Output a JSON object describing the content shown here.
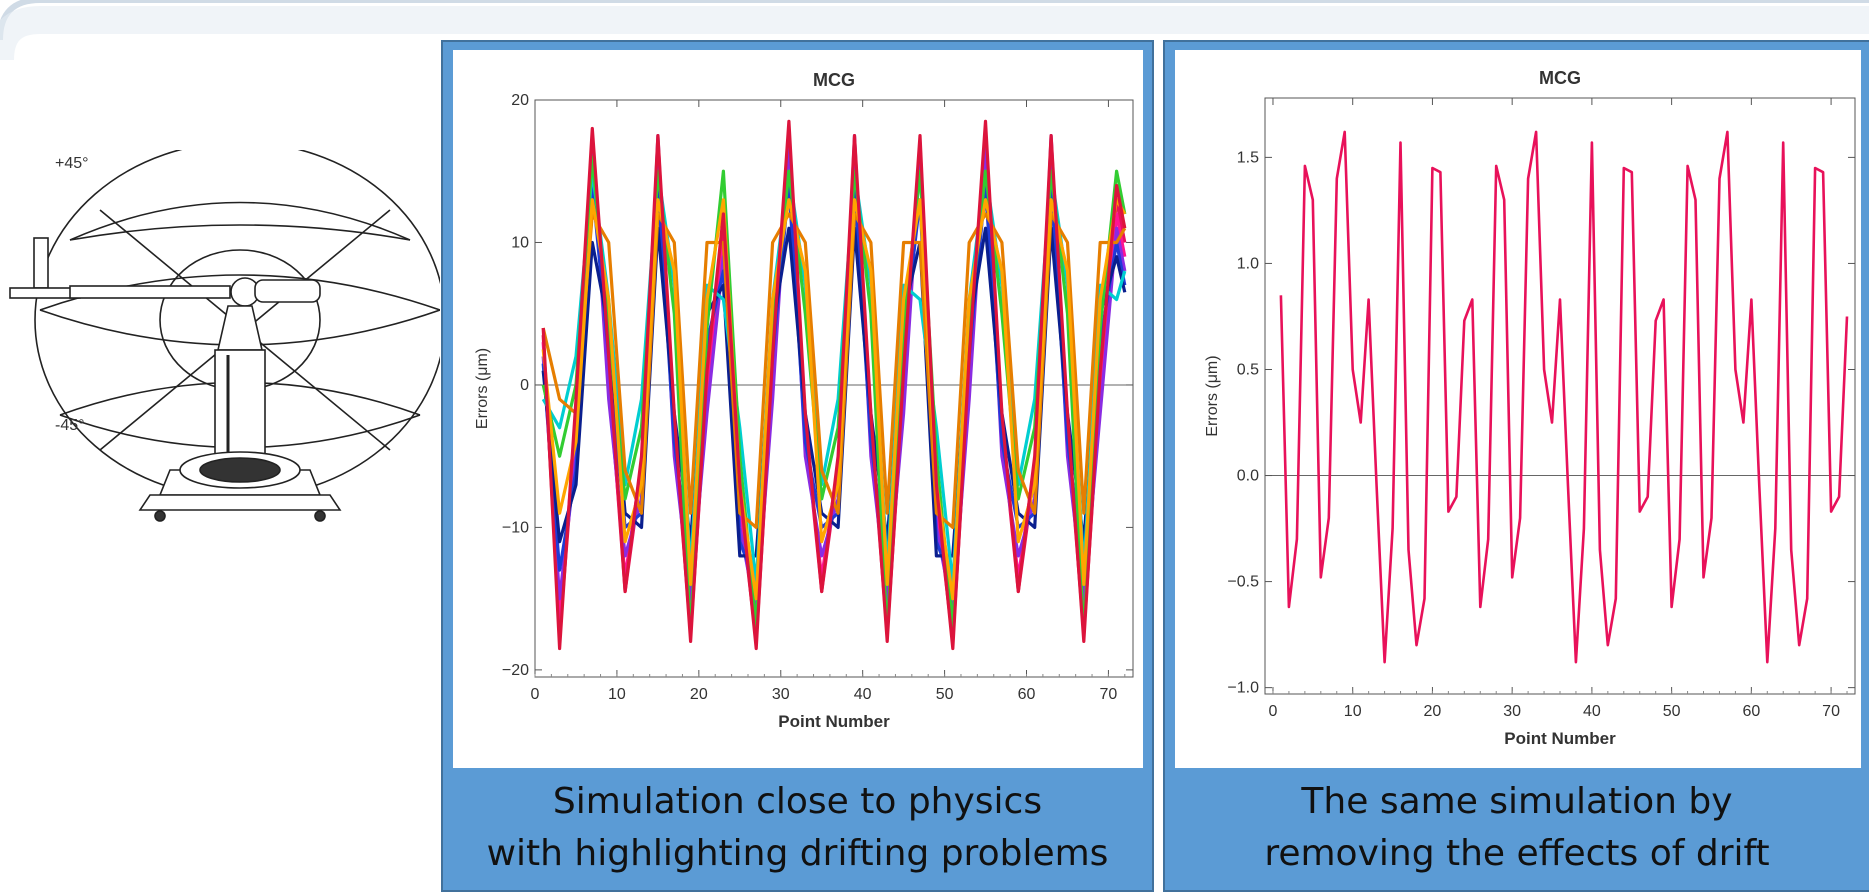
{
  "illustration": {
    "upper_angle": "+45°",
    "lower_angle": "-45°"
  },
  "chart_data": [
    {
      "type": "line",
      "title": "MCG",
      "xlabel": "Point Number",
      "ylabel": "Errors (μm)",
      "xlim": [
        0,
        73
      ],
      "ylim": [
        -20.5,
        20
      ],
      "xticks": [
        0,
        10,
        20,
        30,
        40,
        50,
        60,
        70
      ],
      "yticks": [
        -20,
        -10,
        0,
        10,
        20
      ],
      "ytick_labels": [
        "−20",
        "−10",
        "0",
        "10",
        "20"
      ],
      "grid": false,
      "x": [
        1,
        3,
        5,
        7,
        9,
        11,
        13,
        15,
        17,
        19,
        21,
        23,
        25,
        27,
        29,
        31,
        33,
        35,
        37,
        39,
        41,
        43,
        45,
        47,
        49,
        51,
        53,
        55,
        57,
        59,
        61,
        63,
        65,
        67,
        69,
        71,
        72
      ],
      "series": [
        {
          "color": "#e8115a",
          "values": [
            3.5,
            -17.5,
            -3,
            17.5,
            1,
            -14.5,
            -6,
            17,
            -3,
            -17.5,
            0,
            11,
            -8,
            -18,
            1,
            18,
            -3,
            -14.5,
            -6,
            17,
            -3,
            -17.5,
            0,
            17,
            -8,
            -18,
            1,
            18,
            -3,
            -14.5,
            -6,
            17,
            -3,
            -17.5,
            0,
            13,
            10
          ]
        },
        {
          "color": "#ff1493",
          "values": [
            3,
            -16.5,
            -2.5,
            16.5,
            0,
            -13.5,
            -5.5,
            16.5,
            -3.5,
            -16.5,
            -0.5,
            10,
            -8.5,
            -17,
            0.5,
            17,
            -3.5,
            -13.5,
            -5.5,
            16.5,
            -3.5,
            -16.5,
            -0.5,
            16,
            -8.5,
            -17,
            0.5,
            17,
            -3.5,
            -13.5,
            -5.5,
            16.5,
            -3.5,
            -16.5,
            -0.5,
            12,
            9
          ]
        },
        {
          "color": "#8a2be2",
          "values": [
            2,
            -15,
            -5,
            17,
            -1,
            -12,
            -8,
            17.5,
            -5,
            -15,
            -2,
            9,
            -10,
            -16,
            -1,
            17,
            -5,
            -12,
            -8,
            17.5,
            -5,
            -15,
            -2,
            16,
            -10,
            -16,
            -1,
            17,
            -5,
            -12,
            -8,
            17.5,
            -5,
            -15,
            -2,
            11,
            8
          ]
        },
        {
          "color": "#1f3bd6",
          "values": [
            1.5,
            -13,
            -6,
            14,
            2,
            -10,
            -9,
            14,
            -4,
            -13,
            3,
            8,
            -11,
            -14,
            2,
            14,
            -4,
            -10,
            -9,
            14,
            -4,
            -13,
            3,
            13,
            -11,
            -14,
            2,
            14,
            -4,
            -10,
            -9,
            14,
            -4,
            -13,
            3,
            10,
            7
          ]
        },
        {
          "color": "#0a1f8f",
          "values": [
            1,
            -11,
            -7,
            10,
            4,
            -9,
            -10,
            11,
            -2,
            -11,
            5,
            7,
            -12,
            -12,
            4,
            11,
            -2,
            -9,
            -10,
            11,
            -2,
            -11,
            5,
            10,
            -12,
            -12,
            4,
            11,
            -2,
            -9,
            -10,
            11,
            -2,
            -11,
            5,
            9,
            6.5
          ]
        },
        {
          "color": "#00ced1",
          "values": [
            -1,
            -3,
            2,
            15,
            6,
            -7,
            -1,
            15,
            7,
            -13,
            7,
            6,
            -3,
            -14,
            6,
            15,
            7,
            -7,
            -1,
            15,
            7,
            -13,
            7,
            6,
            -3,
            -14,
            6,
            15,
            7,
            -7,
            -1,
            15,
            7,
            -13,
            7,
            6,
            8
          ]
        },
        {
          "color": "#32cd32",
          "values": [
            0,
            -5,
            0,
            16,
            4,
            -8,
            -3,
            15,
            5,
            -17.5,
            4,
            15,
            -5,
            -17,
            4,
            15,
            5,
            -8,
            -3,
            15,
            5,
            -17.5,
            4,
            15,
            -5,
            -17,
            4,
            15,
            5,
            -8,
            -3,
            15,
            5,
            -17.5,
            4,
            15,
            12
          ]
        },
        {
          "color": "#e67e00",
          "values": [
            4,
            -1,
            -2,
            12,
            10,
            -6,
            -9,
            12,
            10,
            -9,
            10,
            10,
            -9,
            -10,
            10,
            12,
            10,
            -6,
            -9,
            12,
            10,
            -9,
            10,
            10,
            -9,
            -10,
            10,
            12,
            10,
            -6,
            -9,
            12,
            10,
            -9,
            10,
            10,
            11
          ]
        },
        {
          "color": "#ffa500",
          "values": [
            2.5,
            -9,
            -4,
            13,
            6,
            -11,
            -7,
            13,
            8,
            -14,
            6,
            13,
            -7,
            -15,
            6,
            13,
            8,
            -11,
            -7,
            13,
            8,
            -14,
            6,
            13,
            -7,
            -15,
            6,
            13,
            8,
            -11,
            -7,
            13,
            8,
            -14,
            6,
            13,
            12
          ]
        },
        {
          "color": "#dc143c",
          "values": [
            4,
            -18.5,
            -1,
            18,
            2,
            -14.5,
            -5,
            17.5,
            -2,
            -18,
            1,
            12,
            -7,
            -18.5,
            2,
            18.5,
            -2,
            -14.5,
            -5,
            17.5,
            -2,
            -18,
            1,
            17.5,
            -7,
            -18.5,
            2,
            18.5,
            -2,
            -14.5,
            -5,
            17.5,
            -2,
            -18,
            1,
            14,
            11
          ]
        }
      ]
    },
    {
      "type": "line",
      "title": "MCG",
      "xlabel": "Point Number",
      "ylabel": "Errors (μm)",
      "xlim": [
        -1,
        73
      ],
      "ylim": [
        -1.03,
        1.78
      ],
      "xticks": [
        0,
        10,
        20,
        30,
        40,
        50,
        60,
        70
      ],
      "yticks": [
        -1.0,
        -0.5,
        0.0,
        0.5,
        1.0,
        1.5
      ],
      "ytick_labels": [
        "−1.0",
        "−0.5",
        "0.0",
        "0.5",
        "1.0",
        "1.5"
      ],
      "grid": false,
      "x": [
        1,
        2,
        3,
        4,
        5,
        6,
        7,
        8,
        9,
        10,
        11,
        12,
        13,
        14,
        15,
        16,
        17,
        18,
        19,
        20,
        21,
        22,
        23,
        24,
        25,
        26,
        27,
        28,
        29,
        30,
        31,
        32,
        33,
        34,
        35,
        36,
        37,
        38,
        39,
        40,
        41,
        42,
        43,
        44,
        45,
        46,
        47,
        48,
        49,
        50,
        51,
        52,
        53,
        54,
        55,
        56,
        57,
        58,
        59,
        60,
        61,
        62,
        63,
        64,
        65,
        66,
        67,
        68,
        69,
        70,
        71,
        72
      ],
      "series": [
        {
          "color": "#e8115a",
          "values": [
            0.85,
            -0.62,
            -0.3,
            1.46,
            1.3,
            -0.48,
            -0.2,
            1.4,
            1.62,
            0.5,
            0.25,
            0.83,
            -0.05,
            -0.88,
            -0.25,
            1.57,
            -0.35,
            -0.8,
            -0.58,
            1.45,
            1.43,
            -0.17,
            -0.1,
            0.73,
            0.83,
            -0.62,
            -0.3,
            1.46,
            1.3,
            -0.48,
            -0.2,
            1.4,
            1.62,
            0.5,
            0.25,
            0.83,
            -0.05,
            -0.88,
            -0.25,
            1.57,
            -0.35,
            -0.8,
            -0.58,
            1.45,
            1.43,
            -0.17,
            -0.1,
            0.73,
            0.83,
            -0.62,
            -0.3,
            1.46,
            1.3,
            -0.48,
            -0.2,
            1.4,
            1.62,
            0.5,
            0.25,
            0.83,
            -0.05,
            -0.88,
            -0.25,
            1.57,
            -0.35,
            -0.8,
            -0.58,
            1.45,
            1.43,
            -0.17,
            -0.1,
            0.75
          ]
        }
      ]
    }
  ],
  "captions": {
    "left": {
      "line1": "Simulation close to physics",
      "line2": "with highlighting drifting problems"
    },
    "right": {
      "line1": "The same simulation by",
      "line2": "removing the effects of drift"
    }
  }
}
